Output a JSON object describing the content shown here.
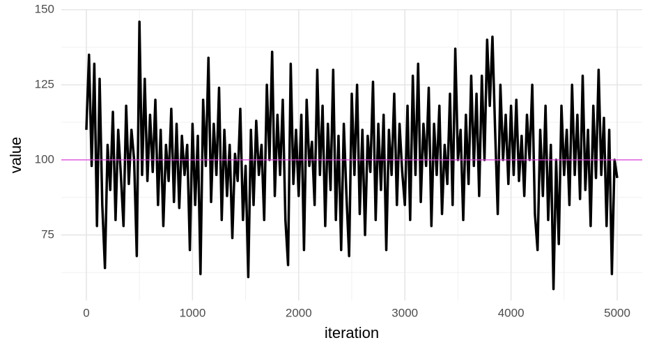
{
  "chart_data": {
    "type": "line",
    "x_label": "iteration",
    "y_label": "value",
    "x": [
      0,
      25,
      50,
      75,
      100,
      125,
      150,
      175,
      200,
      225,
      250,
      275,
      300,
      325,
      350,
      375,
      400,
      425,
      450,
      475,
      500,
      525,
      550,
      575,
      600,
      625,
      650,
      675,
      700,
      725,
      750,
      775,
      800,
      825,
      850,
      875,
      900,
      925,
      950,
      975,
      1000,
      1025,
      1050,
      1075,
      1100,
      1125,
      1150,
      1175,
      1200,
      1225,
      1250,
      1275,
      1300,
      1325,
      1350,
      1375,
      1400,
      1425,
      1450,
      1475,
      1500,
      1525,
      1550,
      1575,
      1600,
      1625,
      1650,
      1675,
      1700,
      1725,
      1750,
      1775,
      1800,
      1825,
      1850,
      1875,
      1900,
      1925,
      1950,
      1975,
      2000,
      2025,
      2050,
      2075,
      2100,
      2125,
      2150,
      2175,
      2200,
      2225,
      2250,
      2275,
      2300,
      2325,
      2350,
      2375,
      2400,
      2425,
      2450,
      2475,
      2500,
      2525,
      2550,
      2575,
      2600,
      2625,
      2650,
      2675,
      2700,
      2725,
      2750,
      2775,
      2800,
      2825,
      2850,
      2875,
      2900,
      2925,
      2950,
      2975,
      3000,
      3025,
      3050,
      3075,
      3100,
      3125,
      3150,
      3175,
      3200,
      3225,
      3250,
      3275,
      3300,
      3325,
      3350,
      3375,
      3400,
      3425,
      3450,
      3475,
      3500,
      3525,
      3550,
      3575,
      3600,
      3625,
      3650,
      3675,
      3700,
      3725,
      3750,
      3775,
      3800,
      3825,
      3850,
      3875,
      3900,
      3925,
      3950,
      3975,
      4000,
      4025,
      4050,
      4075,
      4100,
      4125,
      4150,
      4175,
      4200,
      4225,
      4250,
      4275,
      4300,
      4325,
      4350,
      4375,
      4400,
      4425,
      4450,
      4475,
      4500,
      4525,
      4550,
      4575,
      4600,
      4625,
      4650,
      4675,
      4700,
      4725,
      4750,
      4775,
      4800,
      4825,
      4850,
      4875,
      4900,
      4925,
      4950,
      4975,
      5000
    ],
    "series": [
      {
        "color": "#000000",
        "values": [
          110,
          135,
          98,
          132,
          78,
          127,
          85,
          64,
          105,
          90,
          116,
          80,
          110,
          95,
          78,
          118,
          92,
          110,
          100,
          68,
          146,
          95,
          127,
          93,
          115,
          96,
          120,
          85,
          110,
          78,
          105,
          93,
          117,
          86,
          112,
          84,
          108,
          95,
          105,
          70,
          112,
          85,
          108,
          62,
          120,
          98,
          134,
          86,
          112,
          95,
          124,
          80,
          110,
          88,
          105,
          74,
          102,
          93,
          117,
          80,
          98,
          61,
          110,
          85,
          113,
          95,
          105,
          80,
          125,
          100,
          136,
          88,
          115,
          95,
          120,
          80,
          65,
          132,
          92,
          110,
          88,
          115,
          70,
          120,
          98,
          106,
          85,
          130,
          95,
          118,
          78,
          112,
          90,
          130,
          80,
          108,
          70,
          112,
          88,
          68,
          122,
          95,
          125,
          82,
          110,
          75,
          108,
          96,
          126,
          80,
          112,
          90,
          115,
          70,
          110,
          95,
          122,
          85,
          112,
          96,
          85,
          118,
          80,
          128,
          95,
          132,
          86,
          112,
          98,
          124,
          78,
          112,
          95,
          118,
          82,
          105,
          92,
          122,
          85,
          137,
          100,
          110,
          80,
          115,
          92,
          128,
          98,
          122,
          88,
          128,
          100,
          140,
          118,
          141,
          110,
          82,
          125,
          100,
          115,
          92,
          118,
          95,
          120,
          93,
          108,
          88,
          115,
          100,
          125,
          82,
          70,
          110,
          88,
          118,
          80,
          105,
          57,
          100,
          72,
          118,
          95,
          110,
          85,
          125,
          95,
          115,
          87,
          128,
          90,
          110,
          78,
          118,
          94,
          130,
          95,
          114,
          78,
          110,
          62,
          100,
          94
        ]
      }
    ],
    "hline": 100,
    "hline_color": "#e040e0",
    "xlim": [
      -236,
      5236
    ],
    "xticks": [
      0,
      1000,
      2000,
      3000,
      4000,
      5000
    ],
    "xminor": [
      500,
      1500,
      2500,
      3500,
      4500
    ],
    "ylim": [
      53.2,
      150
    ],
    "yticks": [
      75,
      100,
      125,
      150
    ],
    "yminor": [
      62.5,
      87.5,
      112.5,
      137.5
    ],
    "grid": true
  }
}
